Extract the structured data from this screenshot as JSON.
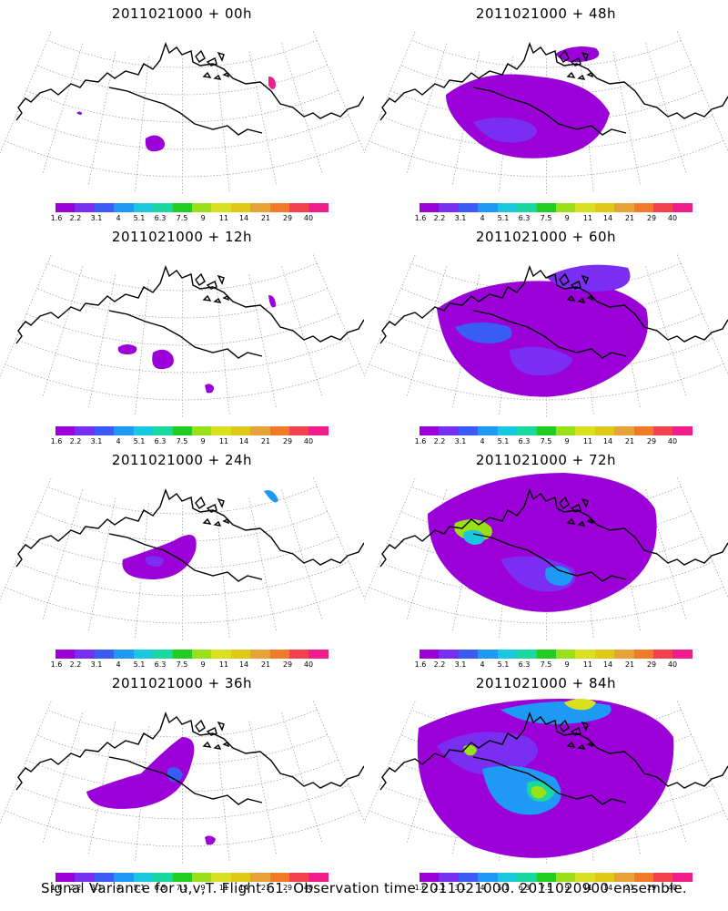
{
  "panels": [
    {
      "title": "2011021000 + 00h"
    },
    {
      "title": "2011021000 + 48h"
    },
    {
      "title": "2011021000 + 12h"
    },
    {
      "title": "2011021000 + 60h"
    },
    {
      "title": "2011021000 + 24h"
    },
    {
      "title": "2011021000 + 72h"
    },
    {
      "title": "2011021000 + 36h"
    },
    {
      "title": "2011021000 + 84h"
    }
  ],
  "colorbar": {
    "labels": [
      "1.6",
      "2.2",
      "3.1",
      "4",
      "5.1",
      "6.3",
      "7.5",
      "9",
      "11",
      "14",
      "21",
      "29",
      "40"
    ],
    "colors": [
      "#9b00d9",
      "#7a2ef2",
      "#3a5cf5",
      "#1e9af5",
      "#19c8e0",
      "#1ad9a0",
      "#22cc22",
      "#99e019",
      "#d9e01f",
      "#e0c819",
      "#e8a23a",
      "#f07a28",
      "#f2424e",
      "#f01e8c"
    ]
  },
  "caption": "Signal Variance for u,v,T. Flight 61. Observation time 2011021000. 2011020900 ensemble."
}
